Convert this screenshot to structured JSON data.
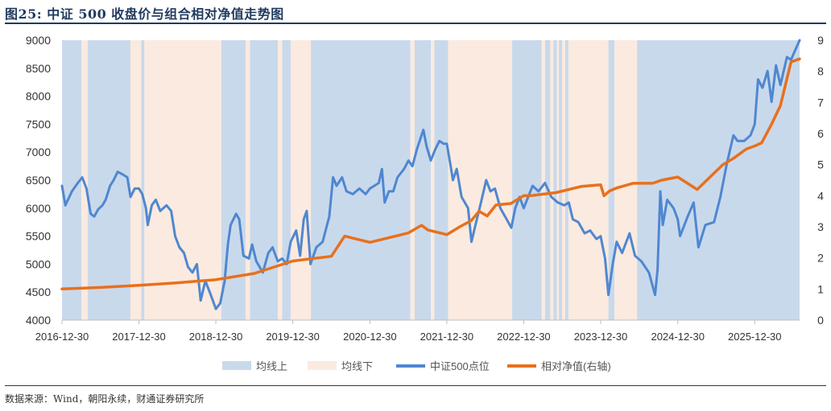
{
  "title": "图25: 中证 500 收盘价与组合相对净值走势图",
  "source": "数据来源：Wind，朝阳永续，财通证券研究所",
  "colors": {
    "above": "#c9d9ec",
    "below": "#fbeadf",
    "index": "#4f87d0",
    "nav": "#e8701c",
    "title": "#1f3a5f"
  },
  "chart_data": {
    "type": "line",
    "title": "",
    "x_ticks": [
      "2016-12-30",
      "2017-12-30",
      "2018-12-30",
      "2019-12-30",
      "2020-12-30",
      "2021-12-30",
      "2022-12-30",
      "2023-12-30",
      "2024-12-30",
      "2025-12-30"
    ],
    "x_range": [
      "2016-12-30",
      "2026-07-31"
    ],
    "y_left": {
      "min": 4000,
      "max": 9000,
      "ticks": [
        4000,
        4500,
        5000,
        5500,
        6000,
        6500,
        7000,
        7500,
        8000,
        8500,
        9000
      ]
    },
    "y_right": {
      "min": 0,
      "max": 9,
      "ticks": [
        0,
        1,
        2,
        3,
        4,
        5,
        6,
        7,
        8,
        9
      ]
    },
    "legend": {
      "position": "bottom",
      "items": [
        {
          "label": "均线上",
          "kind": "area",
          "color": "#c9d9ec"
        },
        {
          "label": "均线下",
          "kind": "area",
          "color": "#fbeadf"
        },
        {
          "label": "中证500点位",
          "kind": "line",
          "color": "#4f87d0"
        },
        {
          "label": "相对净值(右轴)",
          "kind": "line",
          "color": "#e8701c"
        }
      ]
    },
    "regimes": [
      {
        "start": "2016-12-30",
        "end": "2017-04-01",
        "state": "above"
      },
      {
        "start": "2017-04-01",
        "end": "2017-05-01",
        "state": "below"
      },
      {
        "start": "2017-05-01",
        "end": "2017-11-20",
        "state": "above"
      },
      {
        "start": "2017-11-20",
        "end": "2018-01-10",
        "state": "below"
      },
      {
        "start": "2018-01-10",
        "end": "2018-01-25",
        "state": "above"
      },
      {
        "start": "2018-01-25",
        "end": "2019-01-25",
        "state": "below"
      },
      {
        "start": "2019-01-25",
        "end": "2019-05-20",
        "state": "above"
      },
      {
        "start": "2019-05-20",
        "end": "2019-06-10",
        "state": "below"
      },
      {
        "start": "2019-06-10",
        "end": "2019-10-20",
        "state": "above"
      },
      {
        "start": "2019-10-20",
        "end": "2019-11-10",
        "state": "below"
      },
      {
        "start": "2019-11-10",
        "end": "2019-12-20",
        "state": "above"
      },
      {
        "start": "2019-12-20",
        "end": "2020-03-25",
        "state": "below"
      },
      {
        "start": "2020-03-25",
        "end": "2021-07-10",
        "state": "above"
      },
      {
        "start": "2021-07-10",
        "end": "2021-07-30",
        "state": "below"
      },
      {
        "start": "2021-07-30",
        "end": "2021-10-15",
        "state": "above"
      },
      {
        "start": "2021-10-15",
        "end": "2021-11-01",
        "state": "below"
      },
      {
        "start": "2021-11-01",
        "end": "2022-01-05",
        "state": "above"
      },
      {
        "start": "2022-01-05",
        "end": "2022-11-05",
        "state": "below"
      },
      {
        "start": "2022-11-05",
        "end": "2023-03-25",
        "state": "above"
      },
      {
        "start": "2023-03-25",
        "end": "2023-04-10",
        "state": "below"
      },
      {
        "start": "2023-04-10",
        "end": "2023-05-05",
        "state": "above"
      },
      {
        "start": "2023-05-05",
        "end": "2023-05-20",
        "state": "below"
      },
      {
        "start": "2023-05-20",
        "end": "2023-06-05",
        "state": "above"
      },
      {
        "start": "2023-06-05",
        "end": "2023-06-15",
        "state": "below"
      },
      {
        "start": "2023-06-15",
        "end": "2023-06-30",
        "state": "above"
      },
      {
        "start": "2023-06-30",
        "end": "2023-07-15",
        "state": "below"
      },
      {
        "start": "2023-07-15",
        "end": "2023-07-30",
        "state": "above"
      },
      {
        "start": "2023-07-30",
        "end": "2024-02-05",
        "state": "below"
      },
      {
        "start": "2024-02-05",
        "end": "2024-03-05",
        "state": "above"
      },
      {
        "start": "2024-03-05",
        "end": "2024-06-20",
        "state": "below"
      },
      {
        "start": "2024-06-20",
        "end": "2026-07-31",
        "state": "above"
      }
    ],
    "series": [
      {
        "name": "中证500点位",
        "axis": "left",
        "points": [
          [
            "2016-12-30",
            6400
          ],
          [
            "2017-01-15",
            6050
          ],
          [
            "2017-02-15",
            6300
          ],
          [
            "2017-03-15",
            6450
          ],
          [
            "2017-04-05",
            6550
          ],
          [
            "2017-04-25",
            6350
          ],
          [
            "2017-05-15",
            5900
          ],
          [
            "2017-06-01",
            5850
          ],
          [
            "2017-06-20",
            5980
          ],
          [
            "2017-07-10",
            6050
          ],
          [
            "2017-07-25",
            6150
          ],
          [
            "2017-08-15",
            6400
          ],
          [
            "2017-09-01",
            6500
          ],
          [
            "2017-09-20",
            6650
          ],
          [
            "2017-10-15",
            6600
          ],
          [
            "2017-11-05",
            6550
          ],
          [
            "2017-11-20",
            6200
          ],
          [
            "2017-12-10",
            6350
          ],
          [
            "2017-12-30",
            6350
          ],
          [
            "2018-01-15",
            6250
          ],
          [
            "2018-02-01",
            6000
          ],
          [
            "2018-02-10",
            5700
          ],
          [
            "2018-03-01",
            6050
          ],
          [
            "2018-03-20",
            6150
          ],
          [
            "2018-04-10",
            5950
          ],
          [
            "2018-05-10",
            6050
          ],
          [
            "2018-06-01",
            5950
          ],
          [
            "2018-06-20",
            5500
          ],
          [
            "2018-07-10",
            5300
          ],
          [
            "2018-08-01",
            5200
          ],
          [
            "2018-08-20",
            4950
          ],
          [
            "2018-09-10",
            4850
          ],
          [
            "2018-10-01",
            5000
          ],
          [
            "2018-10-19",
            4350
          ],
          [
            "2018-11-10",
            4700
          ],
          [
            "2018-12-01",
            4500
          ],
          [
            "2018-12-30",
            4200
          ],
          [
            "2019-01-20",
            4300
          ],
          [
            "2019-02-10",
            4700
          ],
          [
            "2019-02-25",
            5350
          ],
          [
            "2019-03-10",
            5700
          ],
          [
            "2019-04-05",
            5900
          ],
          [
            "2019-04-20",
            5800
          ],
          [
            "2019-05-10",
            5150
          ],
          [
            "2019-06-05",
            5100
          ],
          [
            "2019-06-20",
            5350
          ],
          [
            "2019-07-10",
            5050
          ],
          [
            "2019-08-10",
            4850
          ],
          [
            "2019-09-05",
            5200
          ],
          [
            "2019-09-25",
            5300
          ],
          [
            "2019-10-20",
            5050
          ],
          [
            "2019-11-10",
            5100
          ],
          [
            "2019-12-01",
            5000
          ],
          [
            "2019-12-20",
            5400
          ],
          [
            "2020-01-15",
            5600
          ],
          [
            "2020-02-03",
            5150
          ],
          [
            "2020-02-20",
            5800
          ],
          [
            "2020-03-05",
            5950
          ],
          [
            "2020-03-23",
            5000
          ],
          [
            "2020-04-20",
            5300
          ],
          [
            "2020-05-20",
            5400
          ],
          [
            "2020-06-20",
            5850
          ],
          [
            "2020-07-08",
            6550
          ],
          [
            "2020-07-25",
            6400
          ],
          [
            "2020-08-20",
            6550
          ],
          [
            "2020-09-10",
            6300
          ],
          [
            "2020-10-10",
            6250
          ],
          [
            "2020-11-10",
            6350
          ],
          [
            "2020-12-10",
            6250
          ],
          [
            "2020-12-30",
            6350
          ],
          [
            "2021-01-20",
            6400
          ],
          [
            "2021-02-10",
            6450
          ],
          [
            "2021-02-25",
            6700
          ],
          [
            "2021-03-10",
            6100
          ],
          [
            "2021-03-30",
            6300
          ],
          [
            "2021-04-20",
            6300
          ],
          [
            "2021-05-10",
            6550
          ],
          [
            "2021-06-10",
            6700
          ],
          [
            "2021-07-01",
            6850
          ],
          [
            "2021-07-20",
            6750
          ],
          [
            "2021-08-10",
            7050
          ],
          [
            "2021-09-10",
            7400
          ],
          [
            "2021-09-25",
            7100
          ],
          [
            "2021-10-15",
            6850
          ],
          [
            "2021-11-05",
            7050
          ],
          [
            "2021-11-25",
            7200
          ],
          [
            "2021-12-15",
            7150
          ],
          [
            "2021-12-30",
            7150
          ],
          [
            "2022-01-15",
            6800
          ],
          [
            "2022-01-28",
            6500
          ],
          [
            "2022-02-15",
            6700
          ],
          [
            "2022-03-10",
            6200
          ],
          [
            "2022-04-10",
            6000
          ],
          [
            "2022-04-26",
            5400
          ],
          [
            "2022-05-15",
            5700
          ],
          [
            "2022-06-10",
            6100
          ],
          [
            "2022-07-05",
            6500
          ],
          [
            "2022-07-25",
            6300
          ],
          [
            "2022-08-15",
            6350
          ],
          [
            "2022-09-10",
            6000
          ],
          [
            "2022-10-10",
            5800
          ],
          [
            "2022-11-01",
            5650
          ],
          [
            "2022-11-20",
            6000
          ],
          [
            "2022-12-10",
            6200
          ],
          [
            "2022-12-30",
            6000
          ],
          [
            "2023-01-20",
            6200
          ],
          [
            "2023-02-10",
            6400
          ],
          [
            "2023-03-10",
            6300
          ],
          [
            "2023-04-10",
            6450
          ],
          [
            "2023-05-10",
            6200
          ],
          [
            "2023-06-10",
            6100
          ],
          [
            "2023-07-10",
            6050
          ],
          [
            "2023-08-01",
            6100
          ],
          [
            "2023-08-20",
            5800
          ],
          [
            "2023-09-15",
            5750
          ],
          [
            "2023-10-15",
            5550
          ],
          [
            "2023-11-10",
            5600
          ],
          [
            "2023-12-10",
            5450
          ],
          [
            "2023-12-30",
            5500
          ],
          [
            "2024-01-20",
            5100
          ],
          [
            "2024-02-05",
            4450
          ],
          [
            "2024-02-25",
            5000
          ],
          [
            "2024-03-15",
            5400
          ],
          [
            "2024-04-10",
            5200
          ],
          [
            "2024-05-15",
            5550
          ],
          [
            "2024-06-10",
            5150
          ],
          [
            "2024-07-10",
            5050
          ],
          [
            "2024-08-15",
            4850
          ],
          [
            "2024-09-13",
            4450
          ],
          [
            "2024-09-25",
            4900
          ],
          [
            "2024-10-08",
            6300
          ],
          [
            "2024-10-20",
            5700
          ],
          [
            "2024-11-10",
            6150
          ],
          [
            "2024-12-10",
            6000
          ],
          [
            "2024-12-30",
            5800
          ],
          [
            "2025-01-10",
            5500
          ],
          [
            "2025-02-15",
            5850
          ],
          [
            "2025-03-15",
            6100
          ],
          [
            "2025-04-07",
            5300
          ],
          [
            "2025-05-10",
            5700
          ],
          [
            "2025-06-20",
            5750
          ],
          [
            "2025-07-20",
            6200
          ],
          [
            "2025-08-20",
            6800
          ],
          [
            "2025-09-20",
            7300
          ],
          [
            "2025-10-10",
            7200
          ],
          [
            "2025-11-10",
            7200
          ],
          [
            "2025-12-10",
            7300
          ],
          [
            "2025-12-30",
            7500
          ],
          [
            "2026-01-15",
            8300
          ],
          [
            "2026-02-05",
            8150
          ],
          [
            "2026-03-01",
            8450
          ],
          [
            "2026-03-20",
            7900
          ],
          [
            "2026-04-10",
            8550
          ],
          [
            "2026-05-01",
            8200
          ],
          [
            "2026-06-01",
            8700
          ],
          [
            "2026-06-20",
            8650
          ],
          [
            "2026-07-31",
            9000
          ]
        ]
      },
      {
        "name": "相对净值(右轴)",
        "axis": "right",
        "points": [
          [
            "2016-12-30",
            1.0
          ],
          [
            "2017-06-30",
            1.05
          ],
          [
            "2017-12-30",
            1.12
          ],
          [
            "2018-06-30",
            1.2
          ],
          [
            "2018-12-30",
            1.3
          ],
          [
            "2019-06-30",
            1.5
          ],
          [
            "2019-12-30",
            1.9
          ],
          [
            "2020-06-30",
            2.05
          ],
          [
            "2020-09-01",
            2.7
          ],
          [
            "2020-12-30",
            2.5
          ],
          [
            "2021-06-30",
            2.8
          ],
          [
            "2021-09-01",
            3.05
          ],
          [
            "2021-10-01",
            2.9
          ],
          [
            "2021-12-30",
            2.75
          ],
          [
            "2022-03-01",
            3.0
          ],
          [
            "2022-04-25",
            3.2
          ],
          [
            "2022-06-01",
            3.5
          ],
          [
            "2022-07-10",
            3.35
          ],
          [
            "2022-08-20",
            3.7
          ],
          [
            "2022-10-30",
            3.75
          ],
          [
            "2022-12-30",
            4.0
          ],
          [
            "2023-02-01",
            4.0
          ],
          [
            "2023-04-01",
            4.05
          ],
          [
            "2023-06-01",
            4.1
          ],
          [
            "2023-08-01",
            4.2
          ],
          [
            "2023-10-01",
            4.3
          ],
          [
            "2023-12-30",
            4.35
          ],
          [
            "2024-01-15",
            4.0
          ],
          [
            "2024-02-10",
            4.15
          ],
          [
            "2024-03-15",
            4.25
          ],
          [
            "2024-06-01",
            4.4
          ],
          [
            "2024-09-01",
            4.4
          ],
          [
            "2024-10-15",
            4.5
          ],
          [
            "2024-12-30",
            4.6
          ],
          [
            "2025-04-01",
            4.2
          ],
          [
            "2025-06-01",
            4.6
          ],
          [
            "2025-08-01",
            5.0
          ],
          [
            "2025-09-20",
            5.2
          ],
          [
            "2025-11-20",
            5.5
          ],
          [
            "2025-12-30",
            5.6
          ],
          [
            "2026-02-01",
            5.7
          ],
          [
            "2026-03-20",
            6.3
          ],
          [
            "2026-05-01",
            6.9
          ],
          [
            "2026-06-20",
            8.3
          ],
          [
            "2026-07-31",
            8.4
          ]
        ]
      }
    ]
  }
}
